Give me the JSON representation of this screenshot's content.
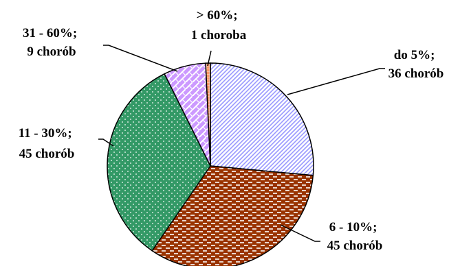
{
  "chart_data": {
    "type": "pie",
    "title": "",
    "slices": [
      {
        "label": "do 5%",
        "count_text": "36 chorób",
        "value": 36,
        "pattern": "diagonal-hatch",
        "color": "#9999ff"
      },
      {
        "label": "6 - 10%",
        "count_text": "45 chorób",
        "value": 45,
        "pattern": "horizontal-dashes",
        "color": "#993300"
      },
      {
        "label": "11 - 30%",
        "count_text": "45 chorób",
        "value": 45,
        "pattern": "dots",
        "color": "#339966"
      },
      {
        "label": "31 - 60%",
        "count_text": "9 chorób",
        "value": 9,
        "pattern": "brick",
        "color": "#cc99ff"
      },
      {
        "label": "> 60%",
        "count_text": "1 choroba",
        "value": 1,
        "pattern": "grid",
        "color": "#ff9966"
      }
    ]
  }
}
